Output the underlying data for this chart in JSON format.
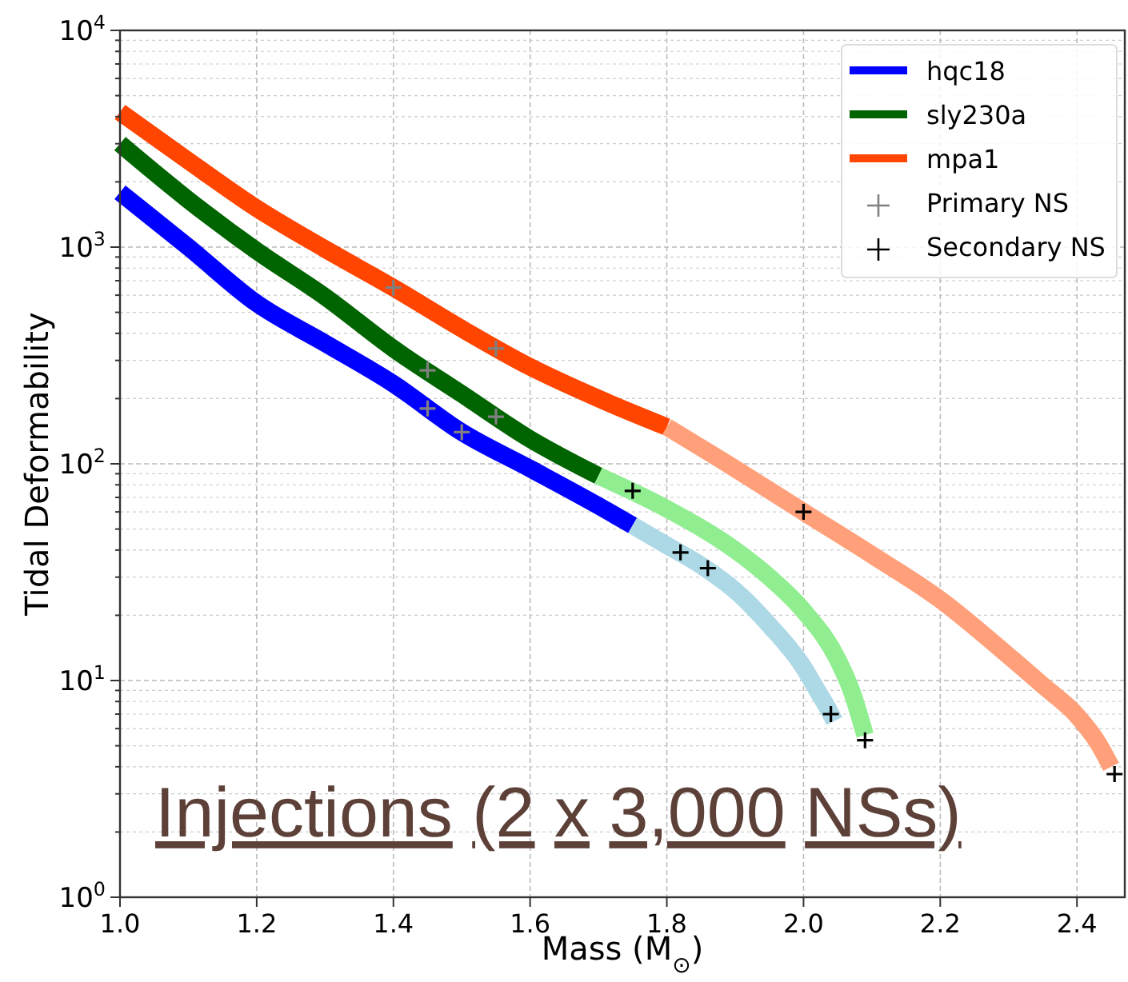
{
  "chart_data": {
    "type": "line",
    "xlabel": "Mass (M$_{⊙}$)",
    "ylabel": "Tidal Deformability",
    "log": "y",
    "grid": true,
    "legend": "top right",
    "xlim": [
      1.0,
      2.47
    ],
    "xticks": [
      {
        "value": 1,
        "label": "1.0"
      },
      1.2,
      1.4,
      1.6,
      1.8,
      {
        "value": 2,
        "label": "2.0"
      },
      2.2,
      2.4
    ],
    "ylim": [
      1,
      10000
    ],
    "yticks": [
      {
        "value": 1,
        "label": "10$^{0}$"
      },
      {
        "value": 10,
        "label": "10$^{1}$"
      },
      {
        "value": 100,
        "label": "10$^{2}$"
      },
      {
        "value": 1000,
        "label": "10$^{3}$"
      },
      {
        "value": 10000,
        "label": "10$^{4}$"
      }
    ],
    "annotations": [
      "Injections (2 x 3,000 NSs)"
    ],
    "series": [
      {
        "name": "hqc18",
        "color": "#0000ff",
        "x": [
          1.0,
          1.1,
          1.2,
          1.3,
          1.4,
          1.5,
          1.6,
          1.7,
          1.75
        ],
        "values": [
          1790,
          1000,
          550,
          360,
          234,
          140,
          95,
          64,
          52
        ]
      },
      {
        "color": "#add8e6",
        "x": [
          1.75,
          1.8,
          1.85,
          1.9,
          1.95,
          2.0,
          2.02,
          2.04,
          2.045
        ],
        "values": [
          52,
          42,
          34,
          26,
          18,
          11.5,
          9,
          7,
          6.5
        ]
      },
      {
        "name": "sly230a",
        "color": "#006400",
        "x": [
          1.0,
          1.1,
          1.2,
          1.3,
          1.4,
          1.5,
          1.6,
          1.7
        ],
        "values": [
          3000,
          1650,
          960,
          590,
          340,
          210,
          130,
          88
        ]
      },
      {
        "color": "#90ee90",
        "x": [
          1.7,
          1.8,
          1.9,
          1.95,
          2.0,
          2.05,
          2.07,
          2.09
        ],
        "values": [
          88,
          62,
          40,
          30,
          21,
          12.5,
          9,
          5.6
        ]
      },
      {
        "name": "mpa1",
        "color": "#ff4500",
        "x": [
          1.0,
          1.1,
          1.2,
          1.3,
          1.4,
          1.5,
          1.6,
          1.7,
          1.8
        ],
        "values": [
          4200,
          2500,
          1510,
          980,
          650,
          420,
          280,
          200,
          148
        ]
      },
      {
        "color": "#ffa07a",
        "x": [
          1.8,
          1.9,
          2.0,
          2.1,
          2.2,
          2.3,
          2.35,
          2.4,
          2.43,
          2.45
        ],
        "values": [
          148,
          95,
          60,
          38,
          23.6,
          13,
          9.5,
          6.9,
          5.2,
          4.0
        ]
      },
      {
        "name": "Primary NS",
        "type": "scatter",
        "marker": "cross",
        "color": "#808080",
        "x": [
          1.45,
          1.5,
          1.45,
          1.55,
          1.4,
          1.55
        ],
        "values": [
          180,
          140,
          270,
          165,
          650,
          340
        ]
      },
      {
        "name": "Secondary NS",
        "type": "scatter",
        "marker": "cross",
        "color": "#000000",
        "x": [
          1.82,
          1.86,
          2.04,
          1.75,
          2.09,
          2.0,
          2.455
        ],
        "values": [
          39,
          33,
          7,
          75,
          5.3,
          60,
          3.7
        ]
      }
    ]
  }
}
